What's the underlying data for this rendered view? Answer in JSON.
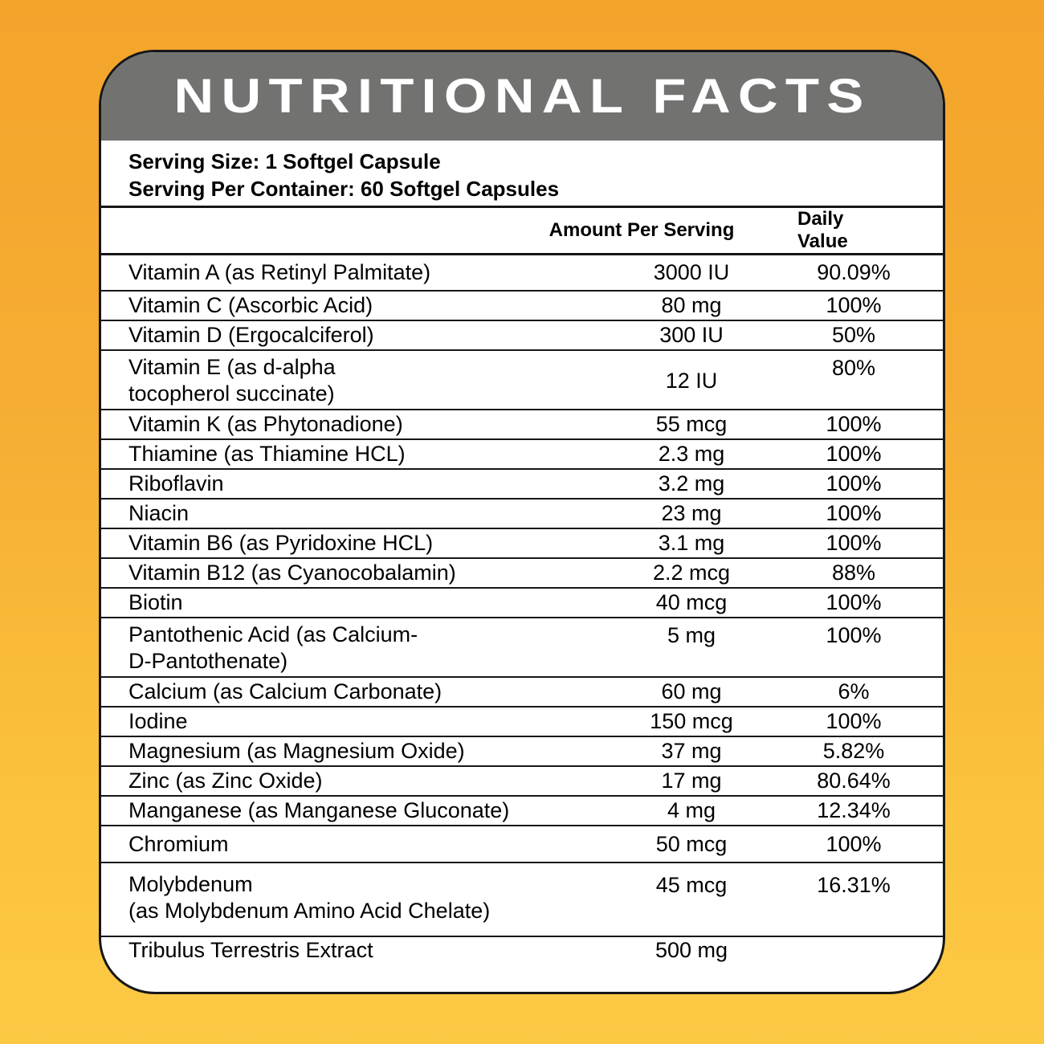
{
  "title": "NUTRITIONAL FACTS",
  "serving": {
    "size_label": "Serving Size: 1 Softgel Capsule",
    "container_label": "Serving Per Container: 60 Softgel Capsules"
  },
  "table": {
    "amount_header": "Amount Per Serving",
    "dv_header": "Daily Value",
    "rows": [
      {
        "name": "Vitamin A (as Retinyl Palmitate)",
        "amount": "3000 IU",
        "dv": "90.09%"
      },
      {
        "name": "Vitamin C (Ascorbic Acid)",
        "amount": "80 mg",
        "dv": "100%"
      },
      {
        "name": "Vitamin D (Ergocalciferol)",
        "amount": "300 IU",
        "dv": "50%"
      },
      {
        "name": "Vitamin E (as d-alpha\ntocopherol succinate)",
        "amount": "12 IU",
        "dv": "80%"
      },
      {
        "name": "Vitamin K (as Phytonadione)",
        "amount": "55 mcg",
        "dv": "100%"
      },
      {
        "name": "Thiamine (as Thiamine HCL)",
        "amount": "2.3 mg",
        "dv": "100%"
      },
      {
        "name": "Riboflavin",
        "amount": "3.2 mg",
        "dv": "100%"
      },
      {
        "name": "Niacin",
        "amount": "23 mg",
        "dv": "100%"
      },
      {
        "name": "Vitamin B6 (as Pyridoxine HCL)",
        "amount": "3.1 mg",
        "dv": "100%"
      },
      {
        "name": "Vitamin B12 (as Cyanocobalamin)",
        "amount": "2.2 mcg",
        "dv": "88%"
      },
      {
        "name": "Biotin",
        "amount": "40 mcg",
        "dv": "100%"
      },
      {
        "name": "Pantothenic Acid (as Calcium-\nD-Pantothenate)",
        "amount": "5 mg",
        "dv": "100%"
      },
      {
        "name": "Calcium (as Calcium Carbonate)",
        "amount": "60 mg",
        "dv": "6%"
      },
      {
        "name": "Iodine",
        "amount": "150 mcg",
        "dv": "100%"
      },
      {
        "name": "Magnesium (as Magnesium Oxide)",
        "amount": "37 mg",
        "dv": "5.82%"
      },
      {
        "name": "Zinc (as Zinc Oxide)",
        "amount": "17 mg",
        "dv": "80.64%"
      },
      {
        "name": "Manganese (as Manganese Gluconate)",
        "amount": "4 mg",
        "dv": "12.34%"
      },
      {
        "name": "Chromium",
        "amount": "50 mcg",
        "dv": "100%"
      },
      {
        "name": "Molybdenum\n(as Molybdenum Amino Acid Chelate)",
        "amount": "45 mcg",
        "dv": "16.31%"
      },
      {
        "name": "Tribulus Terrestris Extract",
        "amount": "500 mg",
        "dv": ""
      }
    ]
  },
  "colors": {
    "background_top": "#F4A42B",
    "background_bottom": "#FCC945",
    "header_gray": "#727271",
    "card_background": "#FFFFFF",
    "line_black": "#161616",
    "title_text": "#FFFFFF"
  }
}
